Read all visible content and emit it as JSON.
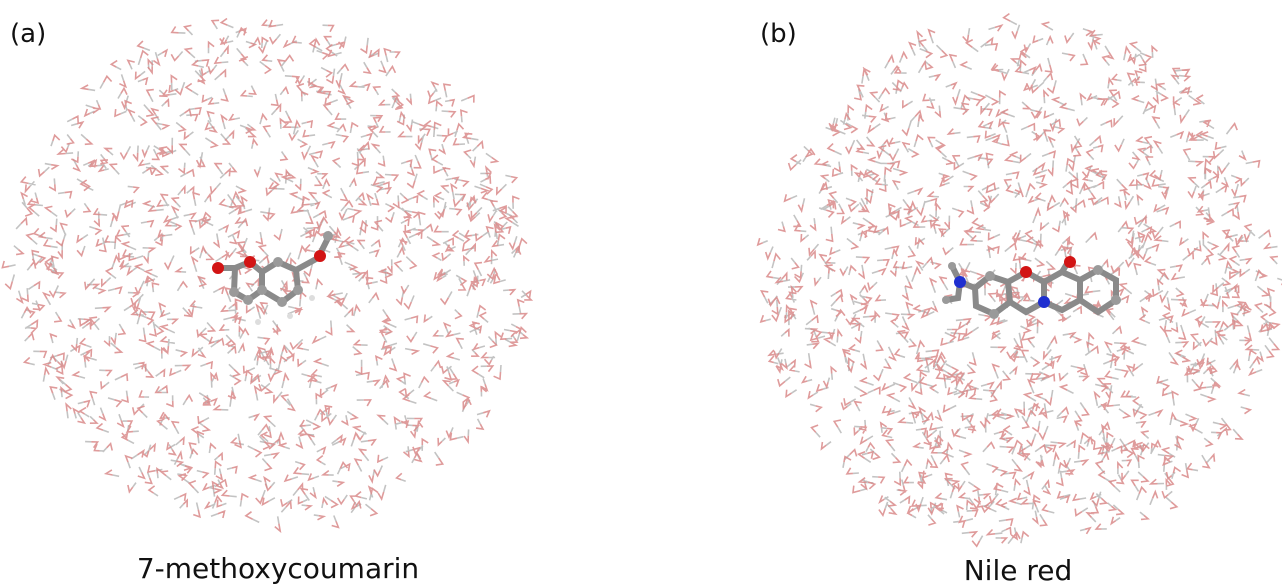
{
  "panels": [
    {
      "tag": "(a)",
      "caption": "7-methoxycoumarin"
    },
    {
      "tag": "(b)",
      "caption": "Nile red"
    }
  ]
}
